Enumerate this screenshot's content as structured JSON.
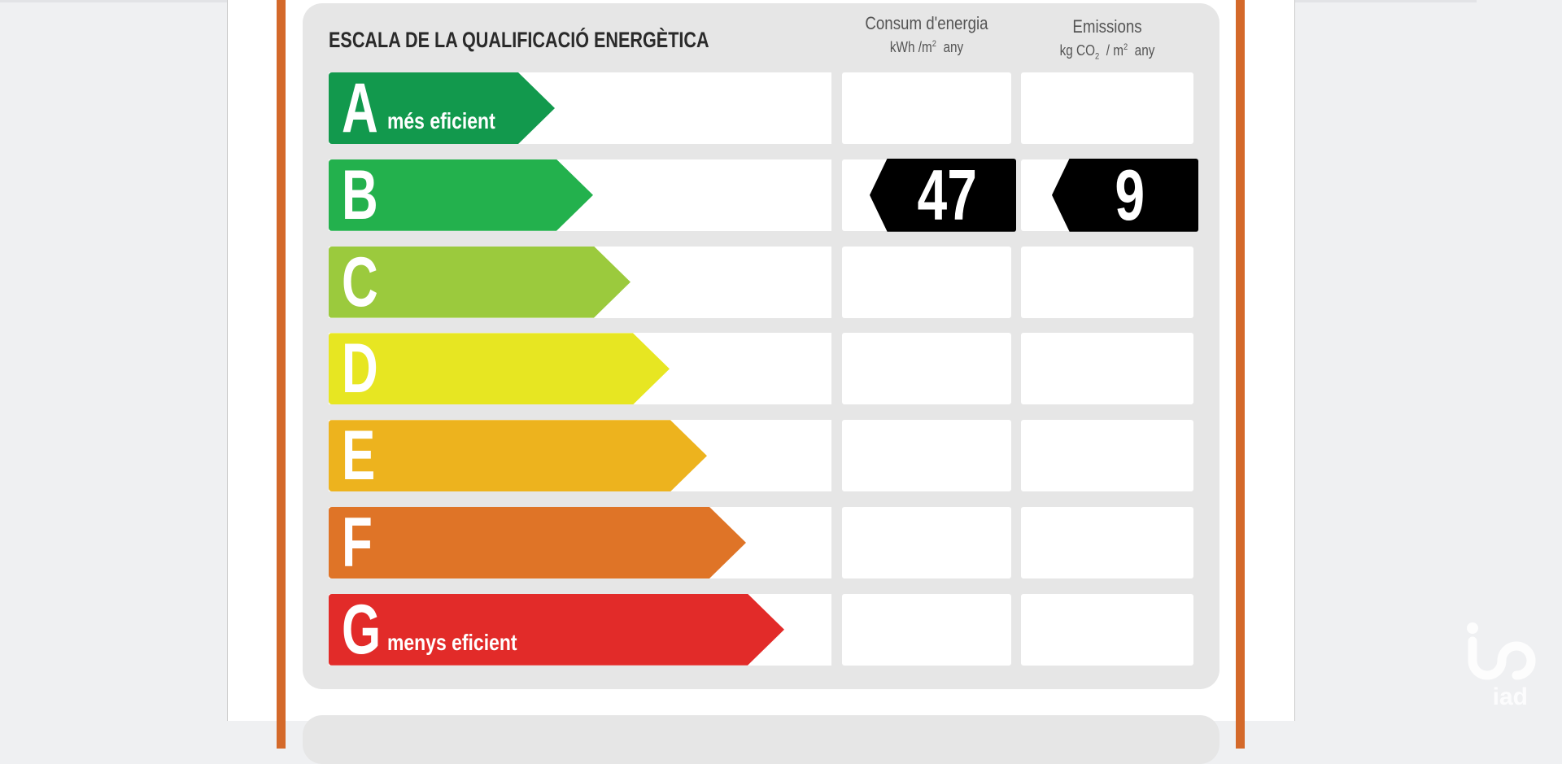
{
  "title": "ESCALA DE LA QUALIFICACIÓ ENERGÈTICA",
  "columns": {
    "energy": {
      "label": "Consum d'energia",
      "unit_prefix": "kWh /m",
      "unit_sup": "2",
      "unit_suffix": "any"
    },
    "emissions": {
      "label": "Emissions",
      "unit_prefix": "kg CO",
      "unit_sub": "2",
      "unit_mid": "/ m",
      "unit_sup": "2",
      "unit_suffix": "any"
    }
  },
  "ratings": [
    {
      "letter": "A",
      "label": "més eficient",
      "color": "#12994d"
    },
    {
      "letter": "B",
      "label": "",
      "color": "#23b14d"
    },
    {
      "letter": "C",
      "label": "",
      "color": "#9bca3d"
    },
    {
      "letter": "D",
      "label": "",
      "color": "#e7e622"
    },
    {
      "letter": "E",
      "label": "",
      "color": "#edb31e"
    },
    {
      "letter": "F",
      "label": "",
      "color": "#df7427"
    },
    {
      "letter": "G",
      "label": "menys eficient",
      "color": "#e22b29"
    }
  ],
  "result": {
    "rating": "B",
    "energy_value": "47",
    "emissions_value": "9"
  },
  "frame_color": "#d4692a",
  "watermark": {
    "text": "iad"
  }
}
